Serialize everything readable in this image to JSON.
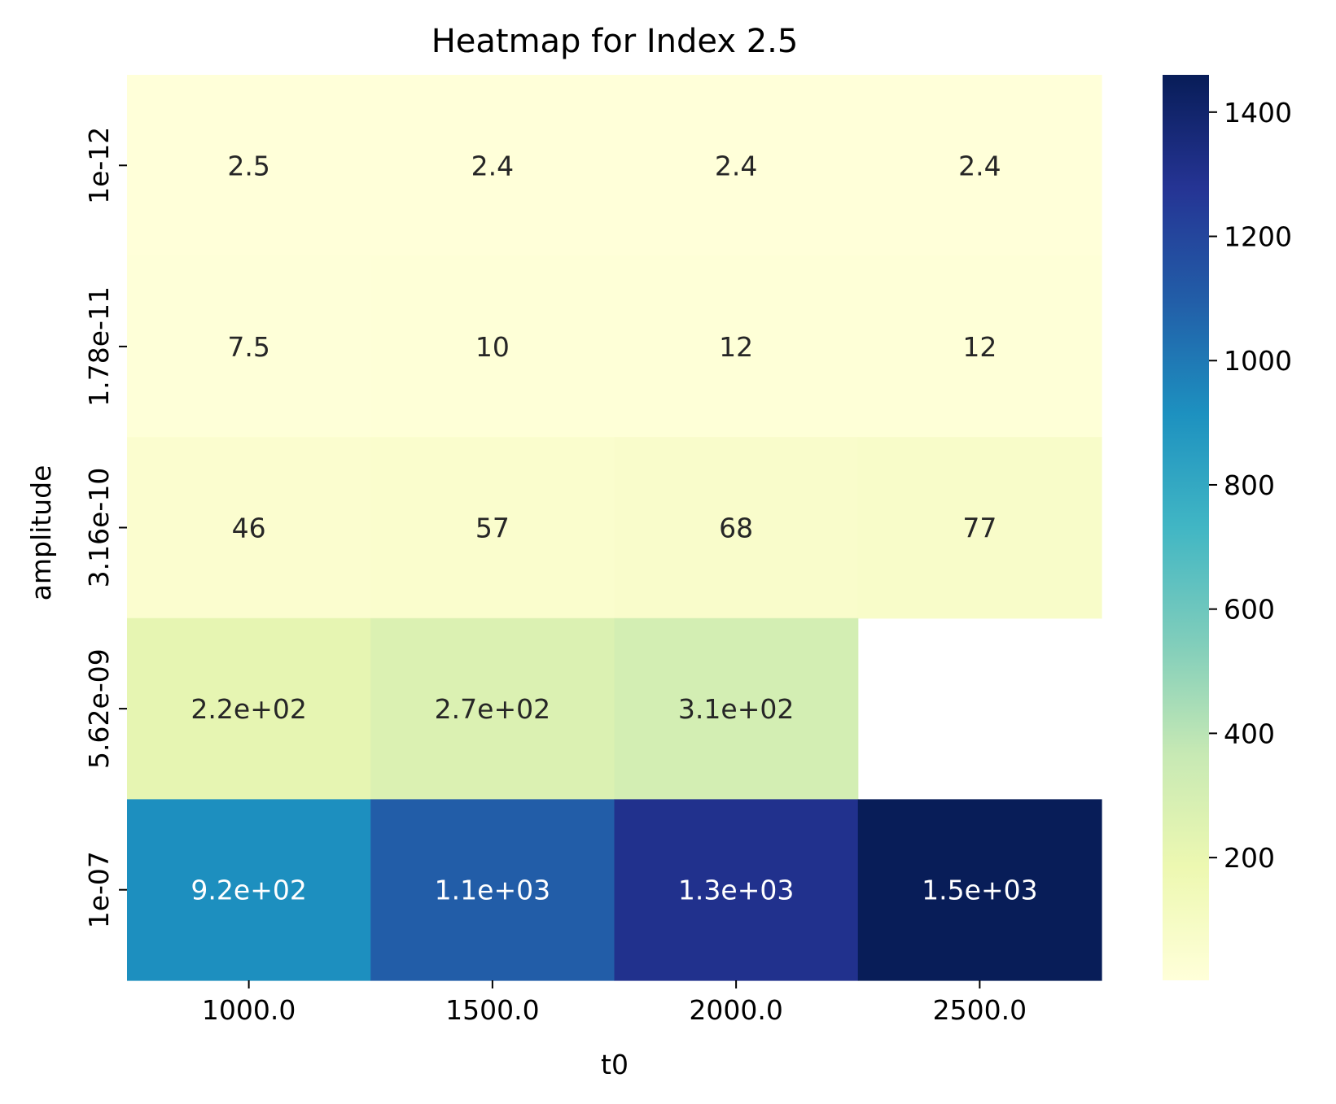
{
  "chart_data": {
    "type": "heatmap",
    "title": "Heatmap for Index 2.5",
    "xlabel": "t0",
    "ylabel": "amplitude",
    "x_categories": [
      "1000.0",
      "1500.0",
      "2000.0",
      "2500.0"
    ],
    "y_categories": [
      "1e-12",
      "1.78e-11",
      "3.16e-10",
      "5.62e-09",
      "1e-07"
    ],
    "values": [
      [
        2.5,
        2.4,
        2.4,
        2.4
      ],
      [
        7.5,
        10,
        12,
        12
      ],
      [
        46,
        57,
        68,
        77
      ],
      [
        220,
        270,
        310,
        null
      ],
      [
        920,
        1100,
        1300,
        1500
      ]
    ],
    "cell_labels": [
      [
        "2.5",
        "2.4",
        "2.4",
        "2.4"
      ],
      [
        "7.5",
        "10",
        "12",
        "12"
      ],
      [
        "46",
        "57",
        "68",
        "77"
      ],
      [
        "2.2e+02",
        "2.7e+02",
        "3.1e+02",
        ""
      ],
      [
        "9.2e+02",
        "1.1e+03",
        "1.3e+03",
        "1.5e+03"
      ]
    ],
    "colormap": "YlGnBu",
    "colorbar": {
      "range": [
        2.4,
        1460
      ],
      "ticks": [
        200,
        400,
        600,
        800,
        1000,
        1200,
        1400
      ],
      "tick_labels": [
        "200",
        "400",
        "600",
        "800",
        "1000",
        "1200",
        "1400"
      ]
    },
    "grid": false
  }
}
